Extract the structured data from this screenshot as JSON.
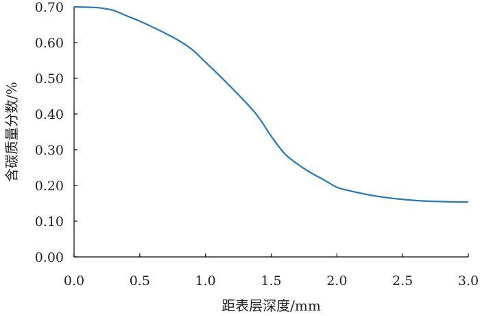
{
  "chart_data": {
    "type": "line",
    "title": "",
    "xlabel": "距表层深度/mm",
    "ylabel": "含碳质量分数/%",
    "xlim": [
      0.0,
      3.0
    ],
    "ylim": [
      0.0,
      0.7
    ],
    "x_ticks": [
      "0.0",
      "0.5",
      "1.0",
      "1.5",
      "2.0",
      "2.5",
      "3.0"
    ],
    "y_ticks": [
      "0.00",
      "0.10",
      "0.20",
      "0.30",
      "0.40",
      "0.50",
      "0.60",
      "0.70"
    ],
    "grid": false,
    "series": [
      {
        "color": "#1f78c1",
        "x": [
          0.0,
          0.1,
          0.2,
          0.3,
          0.4,
          0.5,
          0.6,
          0.7,
          0.8,
          0.9,
          1.0,
          1.1,
          1.2,
          1.3,
          1.4,
          1.5,
          1.6,
          1.7,
          1.8,
          1.9,
          2.0,
          2.1,
          2.2,
          2.3,
          2.4,
          2.5,
          2.6,
          2.7,
          2.8,
          2.9,
          3.0
        ],
        "y": [
          0.7,
          0.699,
          0.697,
          0.69,
          0.675,
          0.66,
          0.643,
          0.625,
          0.605,
          0.58,
          0.545,
          0.51,
          0.473,
          0.435,
          0.393,
          0.338,
          0.29,
          0.26,
          0.236,
          0.216,
          0.195,
          0.185,
          0.177,
          0.17,
          0.165,
          0.161,
          0.158,
          0.156,
          0.155,
          0.154,
          0.154
        ]
      }
    ]
  }
}
